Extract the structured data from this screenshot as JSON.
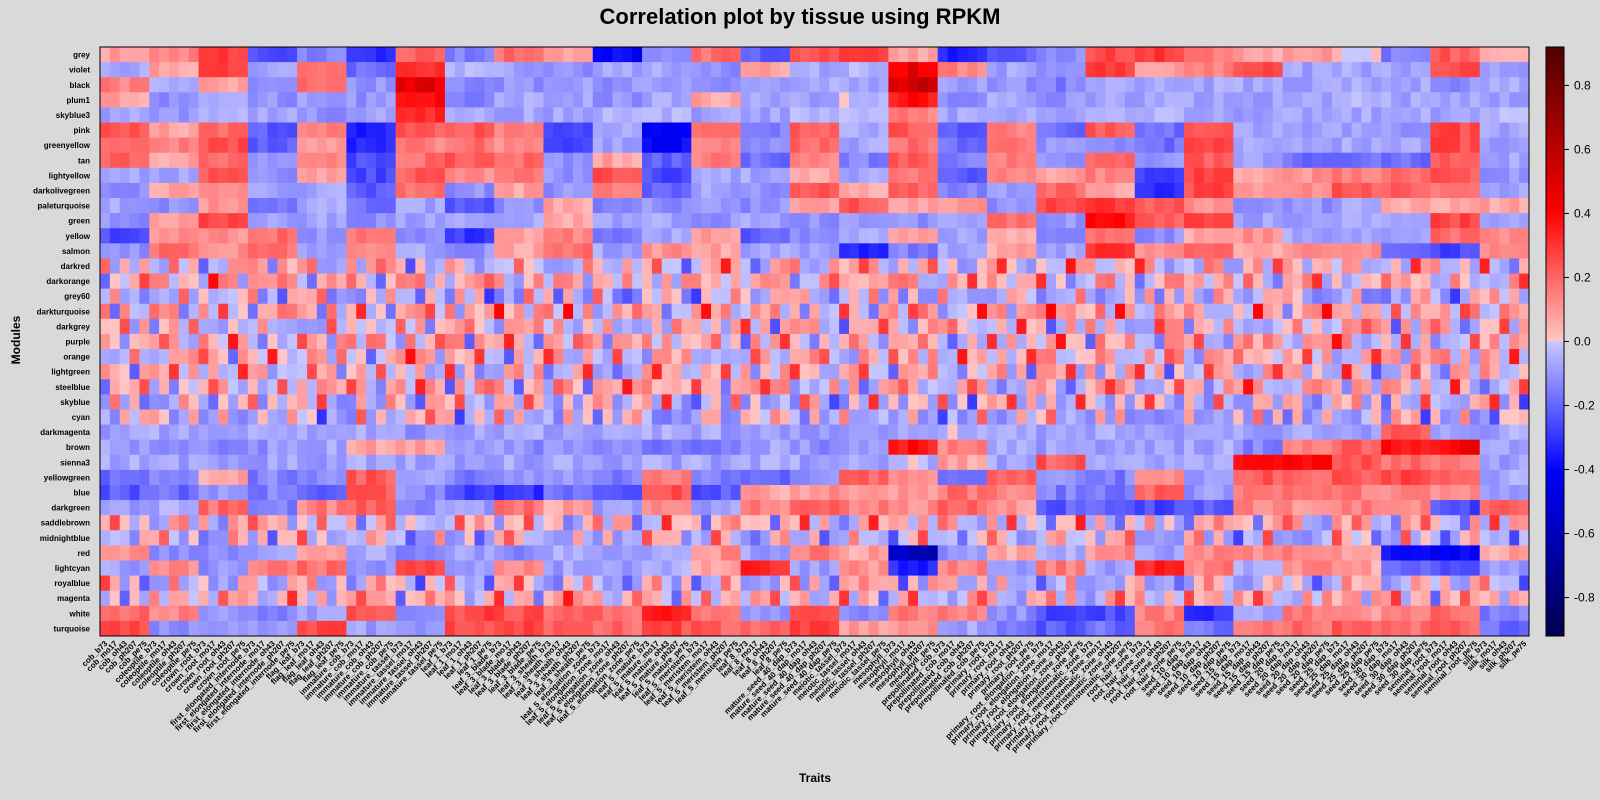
{
  "chart_data": {
    "type": "heatmap",
    "title": "Correlation plot by tissue using RPKM",
    "xlabel": "Traits",
    "ylabel": "Modules",
    "colorbar": {
      "min": -0.92,
      "max": 0.92,
      "ticks": [
        "0.8",
        "0.6",
        "0.4",
        "0.2",
        "0.0",
        "-0.2",
        "-0.4",
        "-0.6",
        "-0.8"
      ],
      "tick_values": [
        0.8,
        0.6,
        0.4,
        0.2,
        0.0,
        -0.2,
        -0.4,
        -0.6,
        -0.8
      ],
      "low_color": "#00004d",
      "mid_low_color": "#0000ff",
      "neutral_color": "#c8c8ff",
      "zero_color": "#ffc8c8",
      "mid_high_color": "#ff0000",
      "high_color": "#4d0000"
    },
    "rows": [
      "grey",
      "violet",
      "black",
      "plum1",
      "skyblue3",
      "pink",
      "greenyellow",
      "tan",
      "lightyellow",
      "darkolivegreen",
      "paleturquoise",
      "green",
      "yellow",
      "salmon",
      "darkred",
      "darkorange",
      "grey60",
      "darkturquoise",
      "darkgrey",
      "purple",
      "orange",
      "lightgreen",
      "steelblue",
      "skyblue",
      "cyan",
      "darkmagenta",
      "brown",
      "sienna3",
      "yellowgreen",
      "blue",
      "darkgreen",
      "saddlebrown",
      "midnightblue",
      "red",
      "lightcyan",
      "royalblue",
      "magenta",
      "white",
      "turquoise"
    ],
    "columns": [
      "cob_b73",
      "cob_mo17",
      "cob_oh43",
      "cob_ph207",
      "cob_pe75",
      "coleoptile_b73",
      "coleoptile_mo17",
      "coleoptile_oh43",
      "coleoptile_ph207",
      "coleoptile_pe75",
      "crown_root_b73",
      "crown_root_mo17",
      "crown_root_oh43",
      "crown_root_ph207",
      "crown_root_pe75",
      "first_elongated_internode_b73",
      "first_elongated_internode_mo17",
      "first_elongated_internode_oh43",
      "first_elongated_internode_ph207",
      "first_elongated_internode_pe75",
      "flag_leaf_b73",
      "flag_leaf_mo17",
      "flag_leaf_oh43",
      "flag_leaf_ph207",
      "flag_leaf_pe75",
      "immature_cob_b73",
      "immature_cob_mo17",
      "immature_cob_oh43",
      "immature_cob_ph207",
      "immature_cob_pe75",
      "immature_tassel_b73",
      "immature_tassel_mo17",
      "immature_tassel_oh43",
      "immature_tassel_ph207",
      "immature_tassel_pe75",
      "leaf_1_b73",
      "leaf_1_mo17",
      "leaf_1_oh43",
      "leaf_1_ph207",
      "leaf_1_pe75",
      "leaf_3_blade_b73",
      "leaf_3_blade_mo17",
      "leaf_3_blade_oh43",
      "leaf_3_blade_ph207",
      "leaf_3_blade_pe75",
      "leaf_3_sheath_b73",
      "leaf_3_sheath_mo17",
      "leaf_3_sheath_oh43",
      "leaf_3_sheath_ph207",
      "leaf_3_sheath_pe75",
      "leaf_5_elongation_zone_b73",
      "leaf_5_elongation_zone_mo17",
      "leaf_5_elongation_zone_oh43",
      "leaf_5_elongation_zone_ph207",
      "leaf_5_elongation_zone_pe75",
      "leaf_5_mature_b73",
      "leaf_5_mature_mo17",
      "leaf_5_mature_oh43",
      "leaf_5_mature_ph207",
      "leaf_5_mature_pe75",
      "leaf_5_meristem_b73",
      "leaf_5_meristem_mo17",
      "leaf_5_meristem_oh43",
      "leaf_5_meristem_ph207",
      "leaf_5_meristem_pe75",
      "leaf_8_b73",
      "leaf_8_mo17",
      "leaf_8_oh43",
      "leaf_8_ph207",
      "leaf_8_pe75",
      "mature_seed_40_dap_b73",
      "mature_seed_40_dap_mo17",
      "mature_seed_40_dap_oh43",
      "mature_seed_40_dap_ph207",
      "mature_seed_40_dap_pe75",
      "meiotic_tassel_b73",
      "meiotic_tassel_mo17",
      "meiotic_tassel_oh43",
      "meiotic_tassel_ph207",
      "meiotic_tassel_pe75",
      "mesophyll_b73",
      "mesophyll_mo17",
      "mesophyll_oh43",
      "mesophyll_ph207",
      "mesophyll_pe75",
      "prepollinated_cob_b73",
      "prepollinated_cob_mo17",
      "prepollinated_cob_oh43",
      "prepollinated_cob_ph207",
      "prepollinated_cob_pe75",
      "primary_root_b73",
      "primary_root_mo17",
      "primary_root_oh43",
      "primary_root_ph207",
      "primary_root_pe75",
      "primary_root_elongation_zone_b73",
      "primary_root_elongation_zone_mo17",
      "primary_root_elongation_zone_oh43",
      "primary_root_elongation_zone_ph207",
      "primary_root_elongation_zone_pe75",
      "primary_root_meristematic_zone_b73",
      "primary_root_meristematic_zone_mo17",
      "primary_root_meristematic_zone_oh43",
      "primary_root_meristematic_zone_ph207",
      "primary_root_meristematic_zone_pe75",
      "root_hair_zone_b73",
      "root_hair_zone_mo17",
      "root_hair_zone_oh43",
      "root_hair_zone_ph207",
      "root_hair_zone_pe75",
      "seed_10_dap_b73",
      "seed_10_dap_mo17",
      "seed_10_dap_oh43",
      "seed_10_dap_ph207",
      "seed_10_dap_pe75",
      "seed_15_dap_b73",
      "seed_15_dap_mo17",
      "seed_15_dap_oh43",
      "seed_15_dap_ph207",
      "seed_15_dap_pe75",
      "seed_20_dap_b73",
      "seed_20_dap_mo17",
      "seed_20_dap_oh43",
      "seed_20_dap_ph207",
      "seed_20_dap_pe75",
      "seed_25_dap_b73",
      "seed_25_dap_mo17",
      "seed_25_dap_oh43",
      "seed_25_dap_ph207",
      "seed_25_dap_pe75",
      "seed_30_dap_b73",
      "seed_30_dap_mo17",
      "seed_30_dap_oh43",
      "seed_30_dap_ph207",
      "seed_30_dap_pe75",
      "seminal_root_b73",
      "seminal_root_mo17",
      "seminal_root_oh43",
      "seminal_root_ph207",
      "seminal_root_pe75",
      "silk_b73",
      "silk_mo17",
      "silk_oh43",
      "silk_ph207",
      "silk_pe75"
    ],
    "row_groups": [
      [
        0.1,
        0.2,
        0.4,
        -0.35,
        -0.2,
        -0.45,
        0.3,
        -0.2,
        0.25,
        0.1,
        -0.55,
        -0.2,
        0.25,
        -0.3,
        0.3,
        0.35,
        0.1,
        -0.45,
        -0.3,
        -0.15,
        0.35,
        0.4,
        0.2,
        0.1,
        0.15,
        0.05,
        -0.2,
        0.3,
        0.1
      ],
      [
        -0.1,
        0.1,
        0.35,
        -0.1,
        0.2,
        -0.25,
        0.45,
        -0.05,
        -0.1,
        -0.15,
        -0.1,
        -0.1,
        -0.15,
        0.1,
        -0.1,
        -0.05,
        0.6,
        0.2,
        -0.1,
        -0.15,
        0.4,
        0.1,
        0.2,
        0.35,
        -0.1,
        -0.1,
        -0.1,
        0.35,
        -0.1
      ],
      [
        0.2,
        -0.1,
        0.1,
        -0.2,
        0.25,
        -0.15,
        0.6,
        -0.2,
        -0.15,
        -0.1,
        -0.15,
        -0.1,
        -0.15,
        -0.15,
        -0.1,
        -0.1,
        0.65,
        -0.1,
        -0.15,
        -0.2,
        -0.1,
        -0.1,
        -0.1,
        -0.1,
        -0.1,
        -0.1,
        -0.1,
        -0.15,
        -0.1
      ],
      [
        0.1,
        -0.15,
        -0.05,
        -0.15,
        -0.1,
        -0.15,
        0.55,
        -0.2,
        -0.1,
        -0.1,
        -0.15,
        -0.1,
        0.1,
        -0.1,
        -0.1,
        -0.05,
        0.5,
        -0.15,
        -0.1,
        -0.15,
        -0.1,
        -0.1,
        -0.1,
        -0.1,
        -0.1,
        -0.05,
        -0.1,
        -0.1,
        -0.1
      ],
      [
        -0.1,
        -0.15,
        -0.05,
        -0.1,
        -0.15,
        -0.1,
        0.45,
        -0.1,
        -0.1,
        -0.1,
        -0.05,
        -0.05,
        -0.1,
        -0.1,
        -0.05,
        -0.05,
        0.2,
        -0.1,
        -0.1,
        -0.15,
        -0.05,
        -0.05,
        -0.1,
        -0.1,
        -0.1,
        -0.1,
        -0.1,
        -0.1,
        -0.05
      ],
      [
        0.3,
        0.1,
        0.25,
        -0.3,
        0.2,
        -0.45,
        0.3,
        0.3,
        0.2,
        -0.35,
        -0.1,
        -0.55,
        0.25,
        -0.2,
        0.3,
        -0.1,
        0.3,
        -0.3,
        0.2,
        -0.25,
        0.3,
        -0.25,
        0.35,
        -0.1,
        -0.1,
        -0.1,
        -0.15,
        0.35,
        -0.1
      ],
      [
        0.3,
        0.2,
        0.35,
        -0.3,
        0.15,
        -0.45,
        0.2,
        0.25,
        0.15,
        -0.35,
        -0.1,
        -0.55,
        0.2,
        -0.15,
        0.25,
        -0.1,
        0.25,
        -0.25,
        0.25,
        -0.15,
        -0.2,
        -0.25,
        0.35,
        -0.1,
        -0.1,
        -0.1,
        -0.1,
        0.35,
        -0.1
      ],
      [
        0.3,
        0.1,
        0.25,
        -0.1,
        0.2,
        -0.35,
        0.25,
        0.3,
        0.25,
        -0.15,
        0.1,
        -0.3,
        0.2,
        -0.25,
        0.2,
        -0.2,
        0.3,
        -0.2,
        0.2,
        -0.15,
        0.3,
        -0.15,
        0.3,
        -0.1,
        -0.25,
        -0.25,
        -0.25,
        0.3,
        -0.1
      ],
      [
        -0.1,
        -0.1,
        0.3,
        -0.15,
        0.1,
        -0.35,
        0.3,
        0.15,
        0.2,
        -0.15,
        0.35,
        -0.35,
        -0.1,
        -0.1,
        0.1,
        -0.1,
        0.2,
        -0.3,
        0.2,
        0.1,
        0.2,
        -0.35,
        0.35,
        0.1,
        0.15,
        0.2,
        0.25,
        0.3,
        -0.15
      ],
      [
        -0.15,
        0.1,
        0.2,
        -0.1,
        -0.1,
        -0.3,
        0.25,
        -0.15,
        0.1,
        -0.15,
        0.2,
        -0.3,
        -0.1,
        -0.15,
        0.3,
        0.1,
        0.3,
        -0.2,
        -0.1,
        0.25,
        0.1,
        -0.45,
        0.35,
        0.15,
        0.15,
        0.3,
        0.3,
        0.25,
        -0.1
      ],
      [
        -0.1,
        -0.15,
        0.15,
        -0.2,
        -0.1,
        -0.25,
        -0.1,
        -0.3,
        -0.15,
        0.1,
        -0.2,
        -0.15,
        -0.1,
        -0.15,
        0.1,
        0.3,
        0.1,
        0.15,
        -0.15,
        0.35,
        0.4,
        0.3,
        0.15,
        -0.15,
        -0.15,
        -0.1,
        0.1,
        0.1,
        0.1
      ],
      [
        -0.15,
        0.1,
        0.35,
        -0.1,
        -0.1,
        -0.15,
        -0.1,
        -0.1,
        -0.1,
        0.1,
        -0.1,
        -0.1,
        -0.15,
        -0.1,
        -0.15,
        -0.1,
        -0.15,
        -0.1,
        0.25,
        -0.15,
        0.5,
        0.3,
        0.35,
        -0.1,
        -0.1,
        -0.1,
        -0.1,
        0.35,
        -0.1
      ],
      [
        -0.35,
        0.15,
        0.15,
        0.25,
        -0.15,
        0.2,
        -0.15,
        -0.4,
        0.1,
        0.2,
        -0.2,
        -0.1,
        0.1,
        -0.3,
        -0.15,
        -0.1,
        0.1,
        -0.1,
        0.1,
        -0.15,
        0.25,
        -0.15,
        0.1,
        0.15,
        -0.1,
        -0.1,
        -0.1,
        0.25,
        0.15
      ],
      [
        -0.15,
        0.25,
        0.15,
        0.25,
        -0.1,
        0.2,
        -0.1,
        -0.15,
        0.1,
        0.25,
        -0.1,
        0.15,
        0.1,
        -0.1,
        -0.1,
        -0.45,
        -0.2,
        -0.1,
        0.1,
        -0.1,
        0.4,
        0.15,
        0.3,
        0.1,
        0.15,
        0.15,
        -0.3,
        -0.35,
        0.2
      ]
    ],
    "pattern_rows": {
      "darkred": 0.1,
      "darkorange": 0.2,
      "grey60": -0.2,
      "darkturquoise": 0.3,
      "darkgrey": 0.1,
      "purple": 0.25,
      "orange": 0.2,
      "lightgreen": 0.1,
      "steelblue": 0.15,
      "skyblue": -0.1,
      "cyan": -0.15
    },
    "bottom_groups": [
      [
        -0.1,
        -0.1,
        -0.1,
        -0.1,
        -0.1,
        -0.1,
        -0.15,
        -0.1,
        -0.1,
        -0.1,
        -0.1,
        -0.1,
        -0.1,
        -0.1,
        -0.1,
        -0.1,
        -0.1,
        -0.05,
        -0.1,
        -0.1,
        -0.1,
        -0.1,
        -0.1,
        -0.1,
        -0.1,
        -0.1,
        0.3,
        -0.1,
        -0.1
      ],
      [
        -0.1,
        -0.15,
        -0.15,
        -0.15,
        -0.1,
        0.1,
        0.1,
        -0.15,
        -0.15,
        -0.15,
        -0.15,
        -0.2,
        -0.2,
        -0.1,
        -0.15,
        -0.15,
        0.5,
        0.2,
        -0.1,
        -0.1,
        -0.15,
        -0.1,
        -0.1,
        -0.2,
        0.2,
        0.3,
        0.5,
        0.55,
        -0.1
      ],
      [
        -0.1,
        -0.1,
        -0.1,
        -0.1,
        -0.1,
        -0.1,
        -0.1,
        -0.1,
        -0.1,
        -0.1,
        -0.1,
        -0.1,
        -0.1,
        -0.1,
        -0.1,
        -0.1,
        -0.05,
        0.1,
        -0.1,
        0.3,
        -0.1,
        -0.1,
        -0.05,
        0.5,
        0.55,
        0.3,
        0.25,
        0.2,
        -0.1
      ],
      [
        -0.25,
        -0.2,
        0.1,
        -0.2,
        -0.15,
        0.3,
        -0.1,
        -0.2,
        -0.15,
        -0.15,
        -0.2,
        0.2,
        -0.2,
        -0.25,
        -0.15,
        0.25,
        0.2,
        -0.2,
        0.3,
        -0.15,
        -0.2,
        0.2,
        -0.15,
        0.3,
        0.25,
        0.3,
        0.35,
        0.3,
        -0.1
      ],
      [
        -0.3,
        -0.25,
        -0.15,
        -0.2,
        -0.3,
        0.3,
        -0.15,
        -0.35,
        -0.4,
        -0.25,
        -0.3,
        0.35,
        -0.3,
        0.1,
        0.15,
        0.1,
        0.1,
        0.25,
        0.2,
        -0.2,
        -0.25,
        0.3,
        -0.15,
        0.2,
        0.25,
        0.2,
        0.2,
        0.15,
        -0.1
      ],
      [
        -0.1,
        -0.1,
        0.25,
        -0.2,
        0.2,
        0.3,
        -0.15,
        -0.1,
        0.25,
        0.1,
        -0.1,
        0.15,
        -0.1,
        0.2,
        0.25,
        0.2,
        0.15,
        0.3,
        0.15,
        -0.3,
        -0.3,
        -0.35,
        -0.3,
        0.2,
        0.15,
        0.2,
        0.2,
        -0.35,
        0.3
      ]
    ],
    "bottom_pattern_rows": {
      "saddlebrown": 0.1,
      "midnightblue": -0.1,
      "royalblue": -0.1,
      "magenta": 0.15
    },
    "tail_groups": [
      [
        0.15,
        -0.15,
        -0.15,
        -0.1,
        0.1,
        -0.1,
        -0.15,
        -0.1,
        -0.15,
        -0.1,
        -0.1,
        -0.1,
        0.15,
        -0.1,
        0.2,
        0.1,
        -0.7,
        -0.15,
        0.1,
        -0.1,
        0.15,
        -0.1,
        0.2,
        0.15,
        0.2,
        0.15,
        -0.5,
        -0.55,
        0.1
      ],
      [
        -0.1,
        0.15,
        -0.15,
        0.2,
        0.25,
        -0.15,
        0.35,
        -0.1,
        0.15,
        -0.1,
        -0.1,
        -0.1,
        0.1,
        0.45,
        -0.1,
        0.15,
        -0.45,
        0.2,
        -0.1,
        0.2,
        -0.1,
        0.45,
        0.2,
        -0.1,
        0.15,
        0.1,
        -0.3,
        -0.35,
        -0.15
      ],
      [
        -0.15,
        0.15,
        -0.1,
        0.15,
        0.2,
        -0.1,
        0.15,
        -0.15,
        -0.1,
        -0.15,
        -0.1,
        -0.15,
        -0.1,
        -0.15,
        -0.15,
        -0.1,
        0.15,
        0.1,
        -0.1,
        -0.2,
        -0.15,
        -0.1,
        -0.1,
        -0.1,
        0.15,
        0.1,
        -0.1,
        -0.15,
        -0.1
      ],
      [
        0.2,
        0.15,
        0.1,
        -0.15,
        -0.15,
        0.25,
        0.1,
        0.2,
        -0.15,
        0.15,
        0.1,
        0.25,
        -0.1,
        0.15,
        0.15,
        -0.15,
        -0.1,
        0.2,
        -0.2,
        -0.25,
        0.15,
        0.2,
        -0.15,
        0.15,
        0.2,
        0.15,
        0.2,
        0.15,
        0.2
      ],
      [
        0.25,
        0.2,
        -0.15,
        -0.2,
        -0.1,
        0.3,
        -0.15,
        0.35,
        0.35,
        0.25,
        0.25,
        0.45,
        0.2,
        -0.15,
        0.3,
        -0.15,
        0.2,
        0.2,
        -0.15,
        -0.35,
        -0.35,
        0.2,
        -0.4,
        -0.1,
        0.2,
        0.15,
        0.2,
        0.25,
        -0.2
      ],
      [
        0.35,
        -0.15,
        -0.15,
        -0.1,
        0.35,
        -0.1,
        -0.15,
        0.35,
        0.35,
        0.3,
        0.25,
        0.35,
        0.3,
        0.25,
        0.35,
        0.1,
        0.15,
        -0.1,
        -0.2,
        -0.3,
        -0.25,
        0.2,
        -0.25,
        0.2,
        0.25,
        0.3,
        0.25,
        0.3,
        -0.25
      ]
    ]
  }
}
